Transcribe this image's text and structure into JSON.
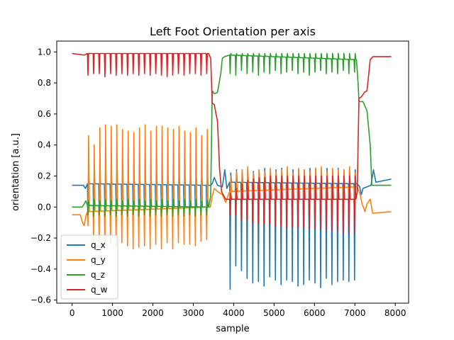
{
  "chart_data": {
    "type": "line",
    "title": "Left Foot Orientation per axis",
    "xlabel": "sample",
    "ylabel": "orientation [a.u.]",
    "xlim": [
      -380,
      8330
    ],
    "ylim": [
      -0.62,
      1.07
    ],
    "xticks": [
      0,
      1000,
      2000,
      3000,
      4000,
      5000,
      6000,
      7000,
      8000
    ],
    "yticks": [
      -0.6,
      -0.4,
      -0.2,
      0.0,
      0.2,
      0.4,
      0.6,
      0.8,
      1.0
    ],
    "xtick_labels": [
      "0",
      "1000",
      "2000",
      "3000",
      "4000",
      "5000",
      "6000",
      "7000",
      "8000"
    ],
    "ytick_labels": [
      "−0.6",
      "−0.4",
      "−0.2",
      "0.0",
      "0.2",
      "0.4",
      "0.6",
      "0.8",
      "1.0"
    ],
    "grid": false,
    "legend_position": "lower-left",
    "phases": {
      "A_cycle_starts": [
        380,
        520,
        660,
        800,
        940,
        1080,
        1220,
        1360,
        1500,
        1640,
        1780,
        1920,
        2060,
        2200,
        2340,
        2480,
        2620,
        2760,
        2900,
        3040,
        3180,
        3320
      ],
      "B_cycle_starts": [
        3900,
        4040,
        4180,
        4320,
        4460,
        4600,
        4740,
        4880,
        5020,
        5160,
        5300,
        5440,
        5580,
        5720,
        5860,
        6000,
        6140,
        6280,
        6420,
        6560,
        6700,
        6840,
        6980
      ]
    },
    "series": [
      {
        "name": "q_x",
        "color": "#1f77b4",
        "anchors": [
          [
            0,
            0.14
          ],
          [
            280,
            0.14
          ],
          [
            330,
            0.12
          ],
          [
            380,
            0.15
          ],
          [
            3420,
            0.14
          ],
          [
            3470,
            0.15
          ],
          [
            3520,
            0.19
          ],
          [
            3600,
            0.14
          ],
          [
            3720,
            0.13
          ],
          [
            3780,
            0.24
          ],
          [
            3830,
            0.12
          ],
          [
            3900,
            0.16
          ],
          [
            7060,
            0.15
          ],
          [
            7120,
            0.13
          ],
          [
            7160,
            0.08
          ],
          [
            7200,
            0.12
          ],
          [
            7300,
            0.13
          ],
          [
            7400,
            0.14
          ],
          [
            7460,
            0.24
          ],
          [
            7520,
            0.16
          ],
          [
            7900,
            0.18
          ]
        ],
        "phaseA": {
          "dips": [
            -0.07,
            -0.08,
            -0.08,
            -0.07,
            -0.08,
            -0.09,
            -0.07,
            -0.08,
            -0.07,
            -0.08,
            -0.07,
            -0.08,
            -0.07,
            -0.07,
            -0.08,
            -0.07,
            -0.08,
            -0.07,
            -0.08,
            -0.07,
            -0.08,
            -0.08
          ],
          "spikes": [
            0.22,
            0.22,
            0.22,
            0.22,
            0.22,
            0.22,
            0.22,
            0.22,
            0.22,
            0.22,
            0.22,
            0.22,
            0.22,
            0.22,
            0.22,
            0.22,
            0.22,
            0.22,
            0.22,
            0.22,
            0.22,
            0.22
          ]
        },
        "phaseB": {
          "dips": [
            -0.53,
            -0.38,
            -0.41,
            -0.46,
            -0.49,
            -0.48,
            -0.51,
            -0.45,
            -0.47,
            -0.5,
            -0.47,
            -0.48,
            -0.51,
            -0.5,
            -0.47,
            -0.49,
            -0.52,
            -0.46,
            -0.5,
            -0.48,
            -0.47,
            -0.48,
            -0.47
          ],
          "spikes": [
            0.22,
            0.24,
            0.24,
            0.24,
            0.23,
            0.24,
            0.25,
            0.23,
            0.24,
            0.25,
            0.24,
            0.24,
            0.24,
            0.24,
            0.25,
            0.25,
            0.24,
            0.25,
            0.24,
            0.25,
            0.24,
            0.24,
            0.24
          ]
        }
      },
      {
        "name": "q_y",
        "color": "#ff7f0e",
        "anchors": [
          [
            0,
            -0.05
          ],
          [
            200,
            -0.05
          ],
          [
            260,
            -0.1
          ],
          [
            300,
            -0.12
          ],
          [
            340,
            -0.06
          ],
          [
            380,
            -0.03
          ],
          [
            3420,
            0.0
          ],
          [
            3470,
            0.07
          ],
          [
            3520,
            0.12
          ],
          [
            3600,
            0.1
          ],
          [
            3720,
            0.08
          ],
          [
            3800,
            0.03
          ],
          [
            3900,
            0.1
          ],
          [
            7060,
            0.13
          ],
          [
            7120,
            0.09
          ],
          [
            7180,
            0.02
          ],
          [
            7250,
            -0.03
          ],
          [
            7300,
            0.02
          ],
          [
            7380,
            0.05
          ],
          [
            7440,
            -0.04
          ],
          [
            7900,
            -0.03
          ]
        ],
        "phaseA": {
          "dips": [
            -0.12,
            -0.22,
            -0.23,
            -0.25,
            -0.24,
            -0.26,
            -0.23,
            -0.25,
            -0.27,
            -0.26,
            -0.25,
            -0.27,
            -0.24,
            -0.27,
            -0.23,
            -0.27,
            -0.23,
            -0.24,
            -0.24,
            -0.25,
            -0.22,
            -0.21
          ],
          "spikes": [
            0.46,
            0.4,
            0.51,
            0.53,
            0.52,
            0.53,
            0.5,
            0.49,
            0.48,
            0.51,
            0.53,
            0.49,
            0.52,
            0.52,
            0.51,
            0.5,
            0.52,
            0.49,
            0.48,
            0.51,
            0.46,
            0.5
          ]
        },
        "phaseB": {
          "dips": [
            -0.04,
            -0.01,
            0.0,
            0.0,
            0.01,
            -0.01,
            0.01,
            0.0,
            -0.01,
            0.0,
            0.0,
            -0.01,
            0.0,
            0.0,
            0.0,
            -0.01,
            0.0,
            0.01,
            0.0,
            0.0,
            0.0,
            0.0,
            0.0
          ],
          "spikes": [
            0.2,
            0.23,
            0.24,
            0.26,
            0.22,
            0.24,
            0.23,
            0.25,
            0.23,
            0.24,
            0.26,
            0.22,
            0.25,
            0.24,
            0.23,
            0.25,
            0.26,
            0.23,
            0.25,
            0.24,
            0.24,
            0.26,
            0.22
          ]
        }
      },
      {
        "name": "q_z",
        "color": "#2ca02c",
        "anchors": [
          [
            0,
            0.0
          ],
          [
            250,
            0.0
          ],
          [
            300,
            0.02
          ],
          [
            340,
            0.04
          ],
          [
            380,
            0.01
          ],
          [
            3380,
            0.0
          ],
          [
            3430,
            0.07
          ],
          [
            3470,
            0.75
          ],
          [
            3520,
            0.73
          ],
          [
            3600,
            0.74
          ],
          [
            3680,
            0.86
          ],
          [
            3720,
            0.96
          ],
          [
            3780,
            0.97
          ],
          [
            3900,
            0.98
          ],
          [
            7040,
            0.95
          ],
          [
            7080,
            0.8
          ],
          [
            7100,
            0.68
          ],
          [
            7200,
            0.68
          ],
          [
            7300,
            0.62
          ],
          [
            7380,
            0.4
          ],
          [
            7420,
            0.14
          ],
          [
            7900,
            0.14
          ]
        ],
        "phaseA": {
          "dips": [
            -0.05,
            -0.06,
            -0.05,
            -0.06,
            -0.05,
            -0.06,
            -0.05,
            -0.06,
            -0.05,
            -0.06,
            -0.05,
            -0.06,
            -0.05,
            -0.06,
            -0.05,
            -0.06,
            -0.05,
            -0.06,
            -0.05,
            -0.06,
            -0.05,
            -0.05
          ],
          "spikes": [
            0.04,
            0.05,
            0.04,
            0.05,
            0.04,
            0.05,
            0.04,
            0.05,
            0.04,
            0.05,
            0.04,
            0.05,
            0.04,
            0.05,
            0.04,
            0.05,
            0.04,
            0.05,
            0.04,
            0.05,
            0.04,
            0.04
          ]
        },
        "phaseB": {
          "dips": [
            0.86,
            0.85,
            0.88,
            0.86,
            0.87,
            0.85,
            0.87,
            0.86,
            0.88,
            0.86,
            0.87,
            0.88,
            0.86,
            0.87,
            0.85,
            0.87,
            0.88,
            0.86,
            0.87,
            0.86,
            0.88,
            0.86,
            0.87
          ],
          "spikes": [
            0.99,
            0.99,
            0.99,
            0.99,
            0.99,
            0.99,
            0.99,
            0.99,
            0.99,
            0.99,
            0.99,
            0.99,
            0.99,
            0.99,
            0.99,
            0.99,
            0.99,
            0.99,
            0.99,
            0.99,
            0.99,
            0.99,
            0.99
          ]
        }
      },
      {
        "name": "q_w",
        "color": "#d62728",
        "anchors": [
          [
            0,
            0.99
          ],
          [
            300,
            0.98
          ],
          [
            380,
            0.99
          ],
          [
            3380,
            0.99
          ],
          [
            3430,
            0.96
          ],
          [
            3470,
            0.67
          ],
          [
            3520,
            0.66
          ],
          [
            3600,
            0.55
          ],
          [
            3650,
            0.25
          ],
          [
            3700,
            0.1
          ],
          [
            3800,
            0.05
          ],
          [
            3900,
            0.05
          ],
          [
            6980,
            0.05
          ],
          [
            7020,
            0.04
          ],
          [
            7060,
            0.1
          ],
          [
            7100,
            0.7
          ],
          [
            7160,
            0.71
          ],
          [
            7240,
            0.74
          ],
          [
            7300,
            0.75
          ],
          [
            7380,
            0.95
          ],
          [
            7450,
            0.97
          ],
          [
            7900,
            0.97
          ]
        ],
        "phaseA": {
          "dips": [
            0.85,
            0.86,
            0.86,
            0.84,
            0.86,
            0.85,
            0.86,
            0.85,
            0.86,
            0.85,
            0.86,
            0.85,
            0.86,
            0.85,
            0.84,
            0.85,
            0.86,
            0.85,
            0.86,
            0.86,
            0.85,
            0.86
          ],
          "spikes": [
            0.99,
            0.99,
            0.99,
            0.99,
            0.99,
            0.99,
            0.99,
            0.99,
            0.99,
            0.99,
            0.99,
            0.99,
            0.99,
            0.99,
            0.99,
            0.99,
            0.99,
            0.99,
            0.99,
            0.99,
            0.99,
            0.99
          ]
        },
        "phaseB": {
          "dips": [
            -0.05,
            -0.05,
            -0.08,
            -0.08,
            -0.1,
            -0.1,
            -0.11,
            -0.11,
            -0.12,
            -0.12,
            -0.13,
            -0.13,
            -0.13,
            -0.13,
            -0.14,
            -0.14,
            -0.14,
            -0.15,
            -0.15,
            -0.16,
            -0.17,
            -0.17,
            -0.17
          ],
          "spikes": [
            0.09,
            0.12,
            0.15,
            0.17,
            0.18,
            0.19,
            0.19,
            0.2,
            0.2,
            0.2,
            0.2,
            0.2,
            0.2,
            0.2,
            0.2,
            0.2,
            0.2,
            0.2,
            0.2,
            0.2,
            0.2,
            0.2,
            0.2
          ]
        }
      }
    ]
  }
}
